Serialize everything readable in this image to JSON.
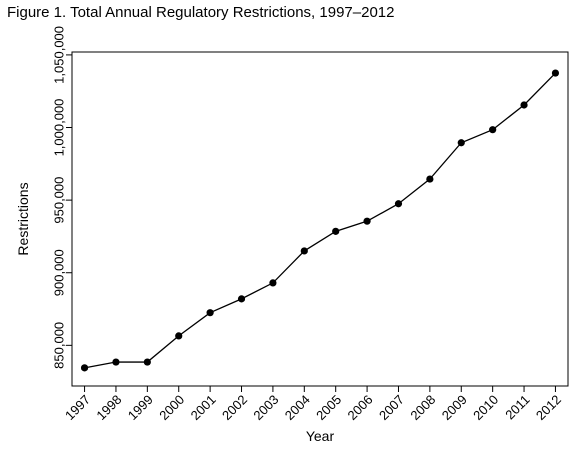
{
  "figure": {
    "title": "Figure 1. Total Annual Regulatory Restrictions, 1997–2012"
  },
  "chart_data": {
    "type": "line",
    "title": "Figure 1. Total Annual Regulatory Restrictions, 1997–2012",
    "xlabel": "Year",
    "ylabel": "Restrictions",
    "x": [
      "1997",
      "1998",
      "1999",
      "2000",
      "2001",
      "2002",
      "2003",
      "2004",
      "2005",
      "2006",
      "2007",
      "2008",
      "2009",
      "2010",
      "2011",
      "2012"
    ],
    "series": [
      {
        "values": [
          834500,
          838500,
          838500,
          856500,
          872500,
          882000,
          893000,
          915000,
          928500,
          935500,
          947500,
          964500,
          989500,
          998500,
          1015500,
          1037500
        ]
      }
    ],
    "xlim": [
      1996.6,
      2012.4
    ],
    "ylim": [
      822000,
      1052000
    ],
    "yticks": [
      850000,
      900000,
      950000,
      1000000,
      1050000
    ],
    "ytick_labels": [
      "850,000",
      "900,000",
      "950,000",
      "1,000,000",
      "1,050,000"
    ],
    "grid": false,
    "line_color": "#000000",
    "marker_color": "#000000"
  }
}
